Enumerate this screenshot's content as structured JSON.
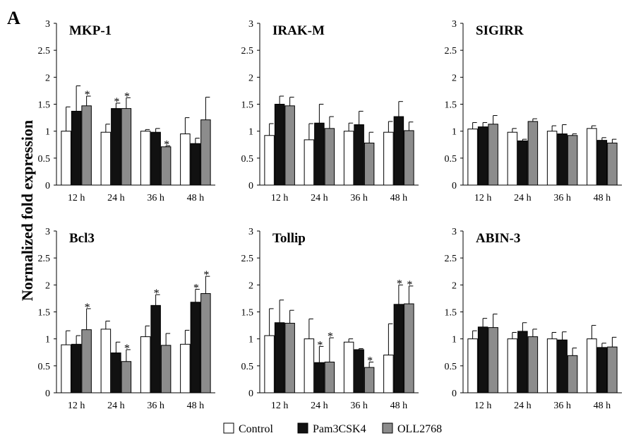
{
  "figure": {
    "panel_letter": "A",
    "ylabel": "Normalized fold expression",
    "legend": [
      {
        "name": "Control",
        "color": "#ffffff"
      },
      {
        "name": "Pam3CSK4",
        "color": "#111111"
      },
      {
        "name": "OLL2768",
        "color": "#8c8c8c"
      }
    ]
  },
  "chart_data": [
    {
      "type": "bar",
      "title": "MKP-1",
      "categories": [
        "12 h",
        "24 h",
        "36 h",
        "48 h"
      ],
      "ylim": [
        0,
        3
      ],
      "yticks": [
        "0",
        "0.5",
        "1",
        "1.5",
        "2",
        "2.5",
        "3"
      ],
      "series": [
        {
          "name": "Control",
          "values": [
            1.0,
            0.98,
            1.0,
            0.95
          ],
          "errors": [
            0.45,
            0.15,
            0.03,
            0.3
          ],
          "sig": [
            false,
            false,
            false,
            false
          ]
        },
        {
          "name": "Pam3CSK4",
          "values": [
            1.37,
            1.42,
            0.98,
            0.77
          ],
          "errors": [
            0.47,
            0.1,
            0.07,
            0.1
          ],
          "sig": [
            false,
            true,
            false,
            false
          ]
        },
        {
          "name": "OLL2768",
          "values": [
            1.47,
            1.42,
            0.71,
            1.21
          ],
          "errors": [
            0.18,
            0.2,
            0.02,
            0.42
          ],
          "sig": [
            true,
            true,
            true,
            false
          ]
        }
      ]
    },
    {
      "type": "bar",
      "title": "IRAK-M",
      "categories": [
        "12 h",
        "24 h",
        "36 h",
        "48 h"
      ],
      "ylim": [
        0,
        3
      ],
      "yticks": [
        "0",
        "0.5",
        "1",
        "1.5",
        "2",
        "2.5",
        "3"
      ],
      "series": [
        {
          "name": "Control",
          "values": [
            0.92,
            0.84,
            1.0,
            0.98
          ],
          "errors": [
            0.22,
            0.3,
            0.15,
            0.2
          ],
          "sig": [
            false,
            false,
            false,
            false
          ]
        },
        {
          "name": "Pam3CSK4",
          "values": [
            1.5,
            1.15,
            1.12,
            1.27
          ],
          "errors": [
            0.15,
            0.35,
            0.25,
            0.28
          ],
          "sig": [
            false,
            false,
            false,
            false
          ]
        },
        {
          "name": "OLL2768",
          "values": [
            1.47,
            1.05,
            0.78,
            1.01
          ],
          "errors": [
            0.16,
            0.22,
            0.2,
            0.16
          ],
          "sig": [
            false,
            false,
            false,
            false
          ]
        }
      ]
    },
    {
      "type": "bar",
      "title": "SIGIRR",
      "categories": [
        "12 h",
        "24 h",
        "36 h",
        "48 h"
      ],
      "ylim": [
        0,
        3
      ],
      "yticks": [
        "0",
        "0.5",
        "1",
        "1.5",
        "2",
        "2.5",
        "3"
      ],
      "series": [
        {
          "name": "Control",
          "values": [
            1.04,
            0.98,
            1.0,
            1.05
          ],
          "errors": [
            0.12,
            0.07,
            0.1,
            0.05
          ],
          "sig": [
            false,
            false,
            false,
            false
          ]
        },
        {
          "name": "Pam3CSK4",
          "values": [
            1.08,
            0.82,
            0.95,
            0.83
          ],
          "errors": [
            0.08,
            0.03,
            0.17,
            0.05
          ],
          "sig": [
            false,
            false,
            false,
            false
          ]
        },
        {
          "name": "OLL2768",
          "values": [
            1.13,
            1.18,
            0.92,
            0.78
          ],
          "errors": [
            0.16,
            0.05,
            0.03,
            0.07
          ],
          "sig": [
            false,
            false,
            false,
            false
          ]
        }
      ]
    },
    {
      "type": "bar",
      "title": "Bcl3",
      "categories": [
        "12 h",
        "24 h",
        "36 h",
        "48 h"
      ],
      "ylim": [
        0,
        3
      ],
      "yticks": [
        "0",
        "0.5",
        "1",
        "1.5",
        "2",
        "2.5",
        "3"
      ],
      "series": [
        {
          "name": "Control",
          "values": [
            0.89,
            1.18,
            1.04,
            0.9
          ],
          "errors": [
            0.26,
            0.15,
            0.2,
            0.26
          ],
          "sig": [
            false,
            false,
            false,
            false
          ]
        },
        {
          "name": "Pam3CSK4",
          "values": [
            0.9,
            0.74,
            1.62,
            1.68
          ],
          "errors": [
            0.16,
            0.2,
            0.2,
            0.24
          ],
          "sig": [
            false,
            false,
            true,
            true
          ]
        },
        {
          "name": "OLL2768",
          "values": [
            1.17,
            0.58,
            0.88,
            1.84
          ],
          "errors": [
            0.39,
            0.22,
            0.22,
            0.32
          ],
          "sig": [
            true,
            true,
            false,
            true
          ]
        }
      ]
    },
    {
      "type": "bar",
      "title": "Tollip",
      "categories": [
        "12 h",
        "24 h",
        "36 h",
        "48 h"
      ],
      "ylim": [
        0,
        3
      ],
      "yticks": [
        "0",
        "0.5",
        "1",
        "1.5",
        "2",
        "2.5",
        "3"
      ],
      "series": [
        {
          "name": "Control",
          "values": [
            1.06,
            1.0,
            0.94,
            0.7
          ],
          "errors": [
            0.5,
            0.37,
            0.06,
            0.58
          ],
          "sig": [
            false,
            false,
            false,
            false
          ]
        },
        {
          "name": "Pam3CSK4",
          "values": [
            1.3,
            0.56,
            0.8,
            1.64
          ],
          "errors": [
            0.42,
            0.3,
            0.02,
            0.36
          ],
          "sig": [
            false,
            true,
            false,
            true
          ]
        },
        {
          "name": "OLL2768",
          "values": [
            1.29,
            0.57,
            0.47,
            1.65
          ],
          "errors": [
            0.24,
            0.45,
            0.1,
            0.33
          ],
          "sig": [
            false,
            true,
            true,
            true
          ]
        }
      ]
    },
    {
      "type": "bar",
      "title": "ABIN-3",
      "categories": [
        "12 h",
        "24 h",
        "36 h",
        "48 h"
      ],
      "ylim": [
        0,
        3
      ],
      "yticks": [
        "0",
        "0.5",
        "1",
        "1.5",
        "2",
        "2.5",
        "3"
      ],
      "series": [
        {
          "name": "Control",
          "values": [
            1.0,
            1.0,
            1.0,
            1.0
          ],
          "errors": [
            0.15,
            0.12,
            0.12,
            0.25
          ],
          "sig": [
            false,
            false,
            false,
            false
          ]
        },
        {
          "name": "Pam3CSK4",
          "values": [
            1.22,
            1.14,
            0.98,
            0.84
          ],
          "errors": [
            0.16,
            0.16,
            0.15,
            0.08
          ],
          "sig": [
            false,
            false,
            false,
            false
          ]
        },
        {
          "name": "OLL2768",
          "values": [
            1.21,
            1.04,
            0.69,
            0.85
          ],
          "errors": [
            0.25,
            0.14,
            0.14,
            0.18
          ],
          "sig": [
            false,
            false,
            false,
            false
          ]
        }
      ]
    }
  ]
}
